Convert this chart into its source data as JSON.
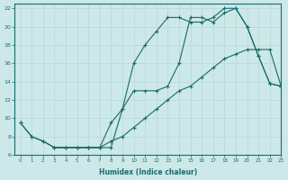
{
  "bg_color": "#cce8e8",
  "grid_color": "#b8d8d8",
  "line_color": "#1a6b6b",
  "xlabel": "Humidex (Indice chaleur)",
  "xlim": [
    -0.5,
    23
  ],
  "ylim": [
    6,
    22.5
  ],
  "yticks": [
    6,
    8,
    10,
    12,
    14,
    16,
    18,
    20,
    22
  ],
  "xticks": [
    0,
    1,
    2,
    3,
    4,
    5,
    6,
    7,
    8,
    9,
    10,
    11,
    12,
    13,
    14,
    15,
    16,
    17,
    18,
    19,
    20,
    21,
    22,
    23
  ],
  "line1_x": [
    0,
    1,
    2,
    3,
    4,
    5,
    6,
    7,
    8,
    9,
    10,
    11,
    12,
    13,
    14,
    15,
    16,
    17,
    18,
    19,
    20,
    21,
    22,
    23
  ],
  "line1_y": [
    9.5,
    8.0,
    7.5,
    6.8,
    6.8,
    6.8,
    6.8,
    6.8,
    7.5,
    8.0,
    9.0,
    10.0,
    11.0,
    12.0,
    13.0,
    13.5,
    14.5,
    15.5,
    16.5,
    17.0,
    17.5,
    17.5,
    17.5,
    13.5
  ],
  "line2_x": [
    0,
    1,
    2,
    3,
    4,
    5,
    6,
    7,
    8,
    9,
    10,
    11,
    12,
    13,
    14,
    15,
    16,
    17,
    18,
    19,
    20,
    21,
    22,
    23
  ],
  "line2_y": [
    9.5,
    8.0,
    7.5,
    6.8,
    6.8,
    6.8,
    6.8,
    6.8,
    9.5,
    11.0,
    16.0,
    18.0,
    19.5,
    21.0,
    21.0,
    20.5,
    20.5,
    21.0,
    22.0,
    22.0,
    20.0,
    16.8,
    13.8,
    13.5
  ],
  "line3_x": [
    3,
    4,
    5,
    6,
    7,
    8,
    9,
    10,
    11,
    12,
    13,
    14,
    15,
    16,
    17,
    18,
    19,
    20,
    21,
    22,
    23
  ],
  "line3_y": [
    6.8,
    6.8,
    6.8,
    6.8,
    6.8,
    6.8,
    11.0,
    13.0,
    13.0,
    13.0,
    13.5,
    16.0,
    21.0,
    21.0,
    20.5,
    21.5,
    22.0,
    20.0,
    16.8,
    13.8,
    13.5
  ]
}
